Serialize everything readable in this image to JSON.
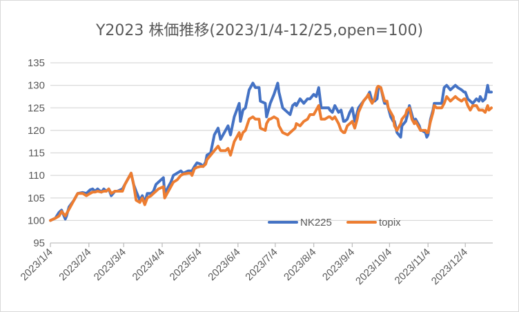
{
  "chart_data": {
    "type": "line",
    "title": "Y2023 株価推移(2023/1/4-12/25,open=100)",
    "xlabel": "",
    "ylabel": "",
    "x_unit": "days since 2023/1/4",
    "xlim": [
      0,
      355
    ],
    "ylim": [
      95,
      135
    ],
    "y_ticks": [
      95,
      100,
      105,
      110,
      115,
      120,
      125,
      130,
      135
    ],
    "x_ticks": [
      {
        "day": 0,
        "label": "2023/1/4"
      },
      {
        "day": 31,
        "label": "2023/2/4"
      },
      {
        "day": 59,
        "label": "2023/3/4"
      },
      {
        "day": 90,
        "label": "2023/4/4"
      },
      {
        "day": 120,
        "label": "2023/5/4"
      },
      {
        "day": 151,
        "label": "2023/6/4"
      },
      {
        "day": 181,
        "label": "2023/7/4"
      },
      {
        "day": 212,
        "label": "2023/8/4"
      },
      {
        "day": 243,
        "label": "2023/9/4"
      },
      {
        "day": 273,
        "label": "2023/10/4"
      },
      {
        "day": 304,
        "label": "2023/11/4"
      },
      {
        "day": 334,
        "label": "2023/12/4"
      }
    ],
    "grid": true,
    "legend_position": "bottom-right-inside",
    "x": [
      0,
      4,
      7,
      9,
      12,
      13,
      15,
      19,
      22,
      26,
      29,
      32,
      34,
      36,
      38,
      41,
      43,
      45,
      47,
      49,
      52,
      54,
      58,
      60,
      63,
      65,
      67,
      69,
      72,
      74,
      76,
      78,
      81,
      83,
      85,
      87,
      91,
      92,
      94,
      97,
      99,
      102,
      105,
      107,
      111,
      113,
      114,
      116,
      118,
      121,
      123,
      125,
      126,
      129,
      132,
      135,
      137,
      141,
      143,
      145,
      148,
      152,
      153,
      155,
      157,
      160,
      163,
      165,
      168,
      169,
      173,
      174,
      176,
      177,
      180,
      183,
      184,
      187,
      191,
      193,
      195,
      197,
      198,
      201,
      204,
      207,
      209,
      212,
      214,
      216,
      218,
      221,
      224,
      225,
      227,
      229,
      232,
      234,
      236,
      237,
      239,
      241,
      243,
      245,
      247,
      248,
      252,
      255,
      256,
      257,
      259,
      261,
      263,
      264,
      266,
      268,
      269,
      271,
      272,
      274,
      276,
      277,
      279,
      282,
      283,
      286,
      287,
      289,
      291,
      293,
      294,
      297,
      298,
      299,
      302,
      303,
      304,
      306,
      308,
      309,
      311,
      312,
      315,
      317,
      319,
      322,
      324,
      326,
      328,
      331,
      333,
      334,
      336,
      338,
      340,
      343,
      345,
      346,
      348,
      350,
      352,
      353,
      355
    ],
    "series": [
      {
        "name": "NK225",
        "color": "#4472C4",
        "values": [
          100,
          100.5,
          101.8,
          102.3,
          100.3,
          101,
          103,
          104.5,
          106,
          106.2,
          106,
          106.8,
          107,
          106.5,
          107,
          106.3,
          107,
          106.5,
          107,
          105.5,
          106.5,
          106.5,
          107,
          108,
          109.5,
          110.5,
          108,
          106.5,
          104.5,
          105.5,
          104,
          106,
          106,
          106.5,
          108,
          108.5,
          109.5,
          106,
          107,
          108.5,
          110,
          110.5,
          111,
          110.5,
          111,
          111,
          111,
          112,
          112.8,
          112.5,
          112,
          113,
          114.5,
          115,
          119,
          120.5,
          118,
          120,
          121,
          119,
          123,
          126,
          122,
          124.5,
          125,
          129,
          130.5,
          129.5,
          129.5,
          126.5,
          126,
          123,
          125,
          126,
          128,
          130.5,
          128.5,
          125,
          124,
          123.5,
          125.5,
          126,
          125.5,
          127,
          126,
          127,
          127,
          128,
          127.5,
          129.5,
          125,
          125,
          125,
          124.5,
          124,
          125.5,
          124,
          124.5,
          122,
          122,
          122.5,
          124,
          125,
          122,
          124,
          125,
          126.5,
          127.5,
          128,
          128.5,
          126.5,
          126.5,
          127,
          129.5,
          129.5,
          127,
          126,
          126,
          125,
          123,
          122,
          122,
          119.5,
          118.5,
          121,
          122,
          123,
          125.5,
          123.5,
          121.5,
          122.5,
          121,
          120,
          120,
          119.5,
          118.5,
          119,
          122.5,
          124.5,
          126,
          126,
          126,
          126,
          129.5,
          130,
          129,
          129.5,
          130,
          129.5,
          129,
          128.5,
          128.5,
          127,
          126.5,
          126,
          127,
          126.5,
          127.5,
          126.5,
          127,
          130,
          128.5,
          128.5
        ]
      },
      {
        "name": "topix",
        "color": "#ED7D31",
        "values": [
          100,
          100.5,
          101,
          102,
          101,
          101.5,
          102.5,
          104.5,
          106,
          106,
          105.5,
          106,
          106.3,
          106.3,
          106.5,
          106.3,
          106.5,
          106.5,
          107,
          106,
          106.5,
          106.5,
          106.5,
          108,
          109.5,
          110.5,
          108,
          104.5,
          104,
          105,
          103.5,
          105,
          105.5,
          106,
          106.5,
          107,
          107.5,
          105,
          106,
          107.5,
          108.5,
          109,
          110,
          110.3,
          110.5,
          110.5,
          110,
          111.5,
          111.8,
          112,
          112,
          112.5,
          113.5,
          114.5,
          115.5,
          116.5,
          115.5,
          115.5,
          116,
          114.5,
          117.5,
          119.5,
          118,
          119.5,
          120,
          122.5,
          123,
          122.5,
          122.5,
          120.5,
          120,
          121.5,
          122.5,
          122.5,
          123,
          122.5,
          121,
          119.5,
          119,
          119.5,
          120,
          120.5,
          121.5,
          121,
          122,
          122.5,
          123.5,
          123.5,
          124.5,
          125.5,
          122.5,
          122.5,
          123,
          123,
          122.5,
          123,
          121.5,
          120,
          119.5,
          119.5,
          121,
          121.5,
          122,
          120.5,
          122.5,
          124,
          126.5,
          127.5,
          128,
          127,
          126,
          127,
          129.5,
          129.8,
          129.5,
          127.5,
          126.5,
          126.5,
          125,
          124,
          123,
          121,
          120,
          121.5,
          122.5,
          123.5,
          124.5,
          125,
          122.5,
          121.5,
          122,
          120.5,
          120,
          120,
          120,
          119.5,
          119.5,
          122,
          124,
          125.5,
          125,
          125,
          125,
          126,
          127.5,
          126.5,
          127,
          127.5,
          127,
          126.5,
          127,
          127,
          125.5,
          124.5,
          125.5,
          125.5,
          124.5,
          124.5,
          124.5,
          124,
          125.5,
          124.5,
          125
        ]
      }
    ]
  }
}
